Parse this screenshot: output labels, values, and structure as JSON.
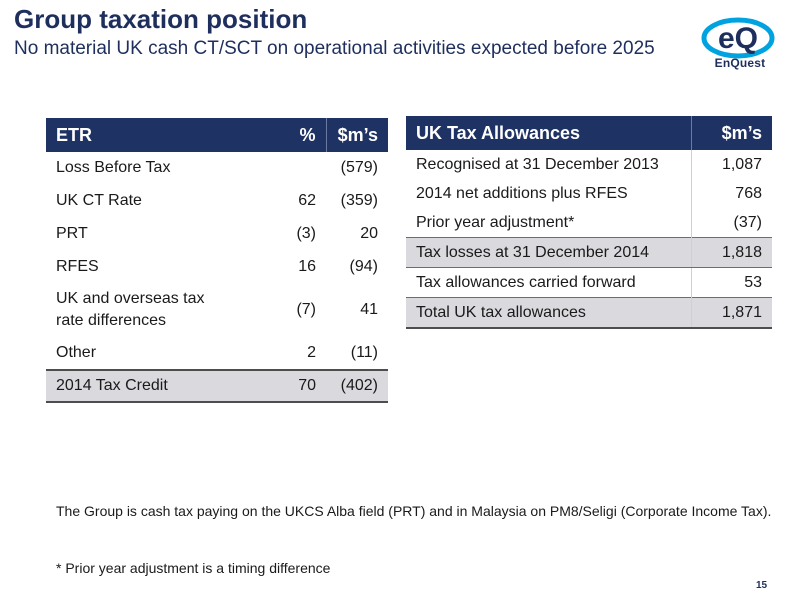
{
  "header": {
    "title": "Group taxation position",
    "subtitle": "No material UK cash CT/SCT on operational activities expected before 2025",
    "logo_text": "eQ",
    "logo_word": "EnQuest"
  },
  "colors": {
    "navy": "#1f3264",
    "shade": "#d9d9de",
    "logo_blue": "#00a3e0"
  },
  "etr_table": {
    "headers": [
      "ETR",
      "%",
      "$m’s"
    ],
    "rows": [
      [
        "Loss Before Tax",
        "",
        "(579)"
      ],
      [
        "UK CT Rate",
        "62",
        "(359)"
      ],
      [
        "PRT",
        "(3)",
        "20"
      ],
      [
        "RFES",
        "16",
        "(94)"
      ],
      [
        "UK and overseas tax",
        "(7)",
        "41"
      ],
      [
        "Other",
        "2",
        "(11)"
      ],
      [
        "2014 Tax Credit",
        "70",
        "(402)"
      ]
    ],
    "row5_line2": "rate differences"
  },
  "allowances_table": {
    "headers": [
      "UK Tax Allowances",
      "$m’s"
    ],
    "rows": [
      [
        "Recognised at 31 December 2013",
        "1,087"
      ],
      [
        "2014 net additions plus RFES",
        "768"
      ],
      [
        "Prior year adjustment*",
        "(37)"
      ],
      [
        "Tax losses at 31 December 2014",
        "1,818"
      ],
      [
        "Tax allowances carried forward",
        "53"
      ],
      [
        "Total UK tax allowances",
        "1,871"
      ]
    ]
  },
  "notes": {
    "body": "The Group is cash tax paying on the UKCS Alba field (PRT) and in Malaysia on PM8/Seligi (Corporate Income Tax).",
    "footnote": "* Prior year adjustment is a timing difference"
  },
  "page_number": "15"
}
